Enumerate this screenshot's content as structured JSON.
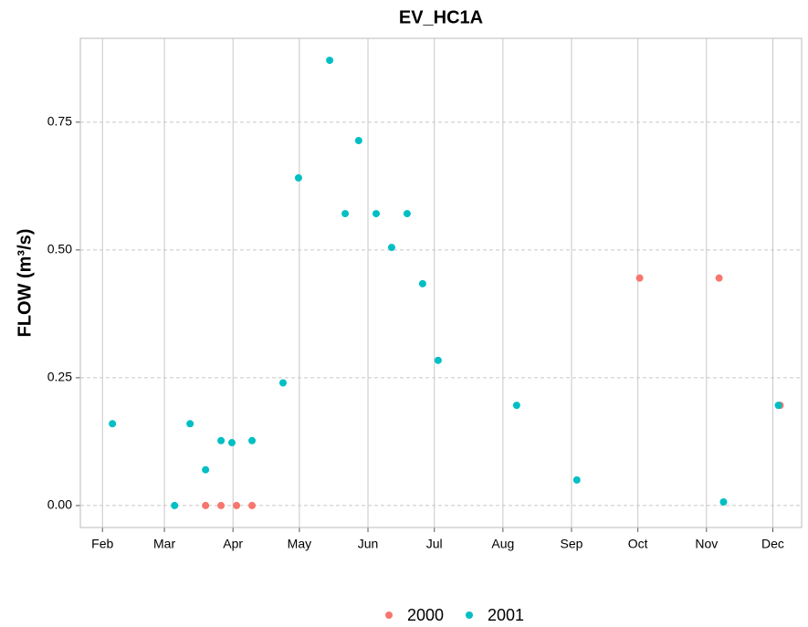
{
  "chart_data": {
    "type": "scatter",
    "title": "EV_HC1A",
    "y_label": "FLOW  (m³/s)",
    "xlim": [
      22,
      348
    ],
    "xticks": [
      {
        "value": 32,
        "label": "Feb"
      },
      {
        "value": 60,
        "label": "Mar"
      },
      {
        "value": 91,
        "label": "Apr"
      },
      {
        "value": 121,
        "label": "May"
      },
      {
        "value": 152,
        "label": "Jun"
      },
      {
        "value": 182,
        "label": "Jul"
      },
      {
        "value": 213,
        "label": "Aug"
      },
      {
        "value": 244,
        "label": "Sep"
      },
      {
        "value": 274,
        "label": "Oct"
      },
      {
        "value": 305,
        "label": "Nov"
      },
      {
        "value": 335,
        "label": "Dec"
      }
    ],
    "ylim": [
      -0.043,
      0.914
    ],
    "yticks": [
      {
        "value": 0,
        "label": "0.00"
      },
      {
        "value": 0.25,
        "label": "0.25"
      },
      {
        "value": 0.5,
        "label": "0.50"
      },
      {
        "value": 0.75,
        "label": "0.75"
      }
    ],
    "grid": true,
    "legend": "bottom",
    "series": [
      {
        "name": "2000",
        "color": "#F8766D",
        "x": [
          78.6,
          85.6,
          92.6,
          99.6,
          274.8,
          310.7,
          338.3
        ],
        "values": [
          0,
          0,
          0,
          0,
          0.445,
          0.445,
          0.196
        ]
      },
      {
        "name": "2001",
        "color": "#00BFC4",
        "x": [
          36.5,
          64.6,
          71.6,
          78.6,
          85.6,
          90.5,
          99.6,
          113.6,
          120.6,
          134.7,
          141.7,
          147.8,
          155.7,
          162.7,
          169.7,
          176.7,
          183.7,
          219.2,
          246.4,
          312.7,
          337.5
        ],
        "values": [
          0.16,
          0,
          0.16,
          0.07,
          0.127,
          0.123,
          0.127,
          0.24,
          0.641,
          0.871,
          0.571,
          0.714,
          0.571,
          0.505,
          0.571,
          0.434,
          0.284,
          0.196,
          0.05,
          0.007,
          0.196
        ]
      }
    ]
  }
}
